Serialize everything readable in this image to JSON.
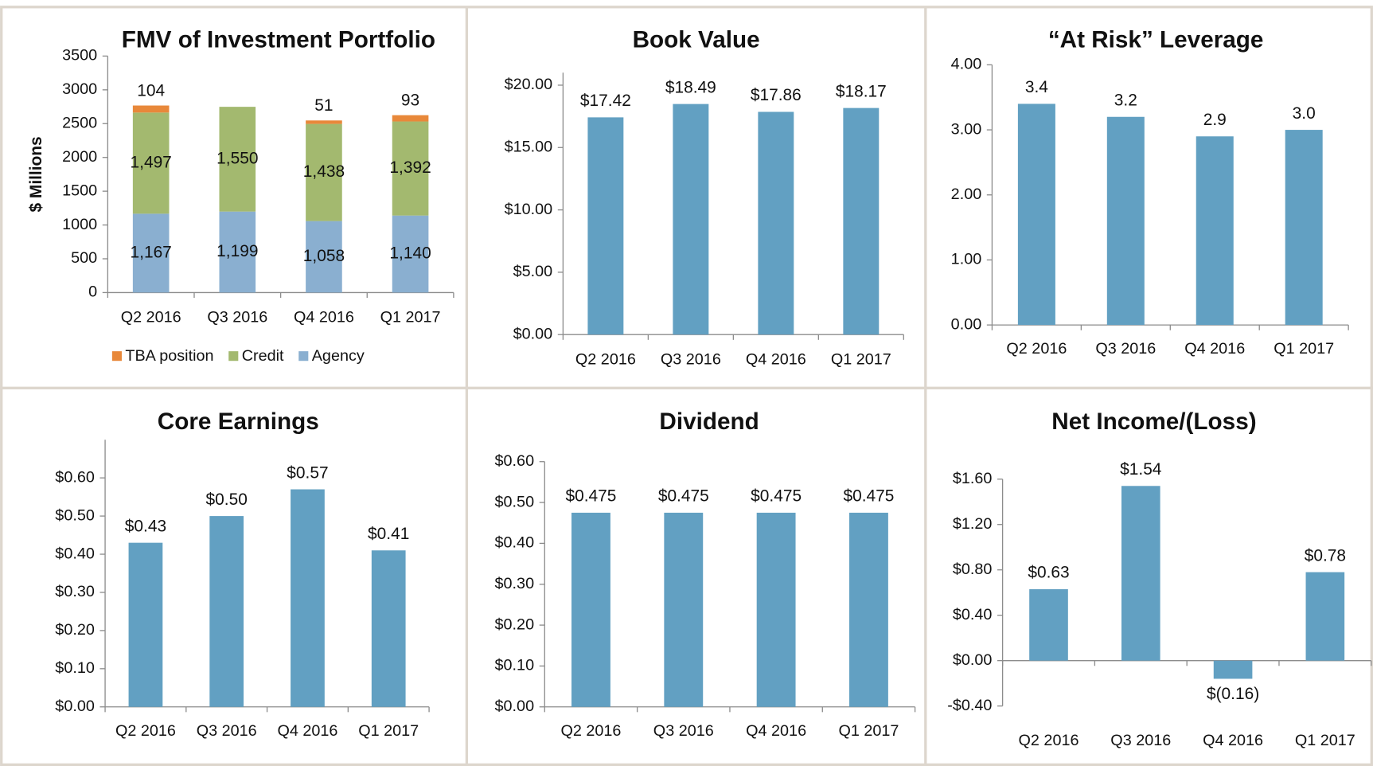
{
  "chart_data": [
    {
      "type": "stacked_bar",
      "title": "FMV of Investment Portfolio",
      "y_label": "$ Millions",
      "categories": [
        "Q2 2016",
        "Q3 2016",
        "Q4 2016",
        "Q1 2017"
      ],
      "series": [
        {
          "name": "TBA position",
          "color": "#e8883a",
          "values": [
            104,
            null,
            51,
            93
          ],
          "value_labels": [
            "104",
            null,
            "51",
            "93"
          ]
        },
        {
          "name": "Credit",
          "color": "#a3b96f",
          "values": [
            1497,
            1550,
            1438,
            1392
          ],
          "value_labels": [
            "1,497",
            "1,550",
            "1,438",
            "1,392"
          ]
        },
        {
          "name": "Agency",
          "color": "#8aafd0",
          "values": [
            1167,
            1199,
            1058,
            1140
          ],
          "value_labels": [
            "1,167",
            "1,199",
            "1,058",
            "1,140"
          ]
        }
      ],
      "ylim": [
        0,
        3500
      ],
      "yticks": [
        0,
        500,
        1000,
        1500,
        2000,
        2500,
        3000,
        3500
      ],
      "legend": "bottom"
    },
    {
      "type": "bar",
      "title": "Book Value",
      "color": "#62a0c2",
      "categories": [
        "Q2 2016",
        "Q3 2016",
        "Q4 2016",
        "Q1 2017"
      ],
      "values": [
        17.42,
        18.49,
        17.86,
        18.17
      ],
      "value_labels": [
        "$17.42",
        "$18.49",
        "$17.86",
        "$18.17"
      ],
      "ylim": [
        0,
        21
      ],
      "yticks": [
        {
          "value": 0,
          "label": "$0.00"
        },
        {
          "value": 5,
          "label": "$5.00"
        },
        {
          "value": 10,
          "label": "$10.00"
        },
        {
          "value": 15,
          "label": "$15.00"
        },
        {
          "value": 20,
          "label": "$20.00"
        }
      ]
    },
    {
      "type": "bar",
      "title": "“At Risk” Leverage",
      "color": "#62a0c2",
      "categories": [
        "Q2 2016",
        "Q3 2016",
        "Q4 2016",
        "Q1 2017"
      ],
      "values": [
        3.4,
        3.2,
        2.9,
        3.0
      ],
      "value_labels": [
        "3.4",
        "3.2",
        "2.9",
        "3.0"
      ],
      "ylim": [
        0,
        4
      ],
      "yticks": [
        {
          "value": 0,
          "label": "0.00"
        },
        {
          "value": 1,
          "label": "1.00"
        },
        {
          "value": 2,
          "label": "2.00"
        },
        {
          "value": 3,
          "label": "3.00"
        },
        {
          "value": 4,
          "label": "4.00"
        }
      ]
    },
    {
      "type": "bar",
      "title": "Core Earnings",
      "color": "#62a0c2",
      "categories": [
        "Q2 2016",
        "Q3 2016",
        "Q4 2016",
        "Q1 2017"
      ],
      "values": [
        0.43,
        0.5,
        0.57,
        0.41
      ],
      "value_labels": [
        "$0.43",
        "$0.50",
        "$0.57",
        "$0.41"
      ],
      "ylim": [
        0,
        0.7
      ],
      "yticks": [
        {
          "value": 0,
          "label": "$0.00"
        },
        {
          "value": 0.1,
          "label": "$0.10"
        },
        {
          "value": 0.2,
          "label": "$0.20"
        },
        {
          "value": 0.3,
          "label": "$0.30"
        },
        {
          "value": 0.4,
          "label": "$0.40"
        },
        {
          "value": 0.5,
          "label": "$0.50"
        },
        {
          "value": 0.6,
          "label": "$0.60"
        }
      ]
    },
    {
      "type": "bar",
      "title": "Dividend",
      "color": "#62a0c2",
      "categories": [
        "Q2 2016",
        "Q3 2016",
        "Q4 2016",
        "Q1 2017"
      ],
      "values": [
        0.475,
        0.475,
        0.475,
        0.475
      ],
      "value_labels": [
        "$0.475",
        "$0.475",
        "$0.475",
        "$0.475"
      ],
      "ylim": [
        0,
        0.6
      ],
      "yticks": [
        {
          "value": 0,
          "label": "$0.00"
        },
        {
          "value": 0.1,
          "label": "$0.10"
        },
        {
          "value": 0.2,
          "label": "$0.20"
        },
        {
          "value": 0.3,
          "label": "$0.30"
        },
        {
          "value": 0.4,
          "label": "$0.40"
        },
        {
          "value": 0.5,
          "label": "$0.50"
        },
        {
          "value": 0.6,
          "label": "$0.60"
        }
      ]
    },
    {
      "type": "bar",
      "title": "Net Income/(Loss)",
      "color": "#62a0c2",
      "categories": [
        "Q2 2016",
        "Q3 2016",
        "Q4 2016",
        "Q1 2017"
      ],
      "values": [
        0.63,
        1.54,
        -0.16,
        0.78
      ],
      "value_labels": [
        "$0.63",
        "$1.54",
        "$(0.16)",
        "$0.78"
      ],
      "ylim": [
        -0.4,
        1.6
      ],
      "yticks": [
        {
          "value": -0.4,
          "label": "-$0.40"
        },
        {
          "value": 0,
          "label": "$0.00"
        },
        {
          "value": 0.4,
          "label": "$0.40"
        },
        {
          "value": 0.8,
          "label": "$0.80"
        },
        {
          "value": 1.2,
          "label": "$1.20"
        },
        {
          "value": 1.6,
          "label": "$1.60"
        }
      ]
    }
  ]
}
